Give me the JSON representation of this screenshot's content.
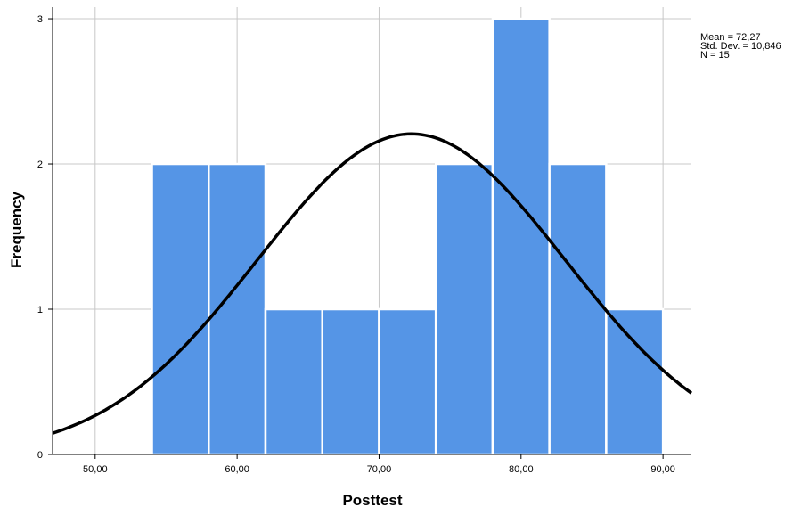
{
  "chart_data": {
    "type": "bar",
    "title": "",
    "xlabel": "Posttest",
    "ylabel": "Frequency",
    "x_ticks": [
      "50,00",
      "60,00",
      "70,00",
      "80,00",
      "90,00"
    ],
    "x_tick_values": [
      50,
      60,
      70,
      80,
      90
    ],
    "y_ticks": [
      "0",
      "1",
      "2",
      "3"
    ],
    "y_tick_values": [
      0,
      1,
      2,
      3
    ],
    "xlim": [
      47,
      92
    ],
    "ylim": [
      0,
      3.08
    ],
    "bins": [
      {
        "start": 54,
        "end": 58,
        "count": 2
      },
      {
        "start": 58,
        "end": 62,
        "count": 2
      },
      {
        "start": 62,
        "end": 66,
        "count": 1
      },
      {
        "start": 66,
        "end": 70,
        "count": 1
      },
      {
        "start": 70,
        "end": 74,
        "count": 1
      },
      {
        "start": 74,
        "end": 78,
        "count": 2
      },
      {
        "start": 78,
        "end": 82,
        "count": 3
      },
      {
        "start": 82,
        "end": 86,
        "count": 2
      },
      {
        "start": 86,
        "end": 90,
        "count": 1
      }
    ],
    "normal_curve": {
      "mean": 72.27,
      "std_dev": 10.846,
      "n": 15,
      "bin_width": 4
    },
    "grid": true,
    "bar_color": "#5595e6",
    "curve_color": "#000000"
  },
  "stats_box": {
    "mean_text": "Mean = 72,27",
    "std_text": "Std. Dev. = 10,846",
    "n_text": "N = 15"
  }
}
